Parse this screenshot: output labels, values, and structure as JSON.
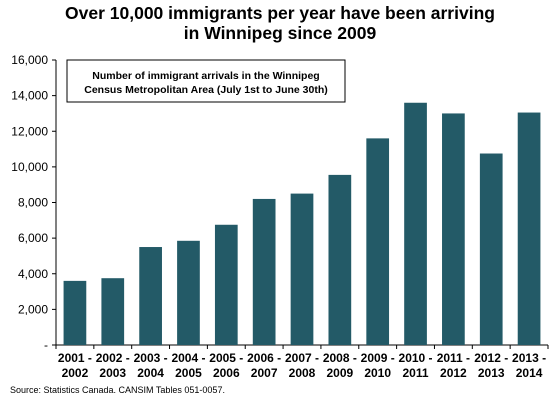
{
  "chart_data": {
    "type": "bar",
    "title_lines": [
      "Over 10,000 immigrants per year have been arriving",
      "in Winnipeg since 2009"
    ],
    "annotation_lines": [
      "Number of immigrant arrivals in the Winnipeg",
      "Census Metropolitan Area (July 1st to June 30th)"
    ],
    "categories": [
      [
        "2001 -",
        "2002"
      ],
      [
        "2002 -",
        "2003"
      ],
      [
        "2003 -",
        "2004"
      ],
      [
        "2004 -",
        "2005"
      ],
      [
        "2005 -",
        "2006"
      ],
      [
        "2006 -",
        "2007"
      ],
      [
        "2007 -",
        "2008"
      ],
      [
        "2008 -",
        "2009"
      ],
      [
        "2009 -",
        "2010"
      ],
      [
        "2010 -",
        "2011"
      ],
      [
        "2011 -",
        "2012"
      ],
      [
        "2012 -",
        "2013"
      ],
      [
        "2013 -",
        "2014"
      ]
    ],
    "values": [
      3600,
      3750,
      5500,
      5850,
      6750,
      8200,
      8500,
      9550,
      11600,
      13600,
      13000,
      10750,
      13050
    ],
    "ylim": [
      0,
      16000
    ],
    "yticks": [
      0,
      2000,
      4000,
      6000,
      8000,
      10000,
      12000,
      14000,
      16000
    ],
    "ytick_labels": [
      "-",
      "2,000",
      "4,000",
      "6,000",
      "8,000",
      "10,000",
      "12,000",
      "14,000",
      "16,000"
    ],
    "bar_color": "#235a67",
    "grid": false,
    "source": "Source: Statistics Canada. CANSIM Tables 051-0057."
  }
}
